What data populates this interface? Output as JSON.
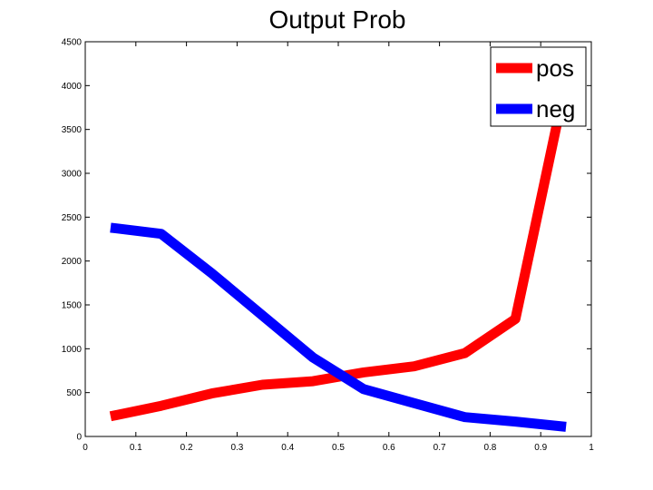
{
  "chart_data": {
    "type": "line",
    "title": "Output Prob",
    "xlabel": "",
    "ylabel": "",
    "xlim": [
      0,
      1
    ],
    "ylim": [
      0,
      4500
    ],
    "xticks": [
      0,
      0.1,
      0.2,
      0.3,
      0.4,
      0.5,
      0.6,
      0.7,
      0.8,
      0.9,
      1
    ],
    "yticks": [
      0,
      500,
      1000,
      1500,
      2000,
      2500,
      3000,
      3500,
      4000,
      4500
    ],
    "x": [
      0.05,
      0.15,
      0.25,
      0.35,
      0.45,
      0.55,
      0.65,
      0.75,
      0.85,
      0.95
    ],
    "grid": false,
    "legend_position": "top-right",
    "series": [
      {
        "name": "pos",
        "color": "#ff0000",
        "values": [
          230,
          350,
          490,
          590,
          630,
          730,
          800,
          950,
          1340,
          4050
        ]
      },
      {
        "name": "neg",
        "color": "#0000ff",
        "values": [
          2380,
          2310,
          1860,
          1380,
          900,
          540,
          380,
          220,
          170,
          110
        ]
      }
    ]
  }
}
